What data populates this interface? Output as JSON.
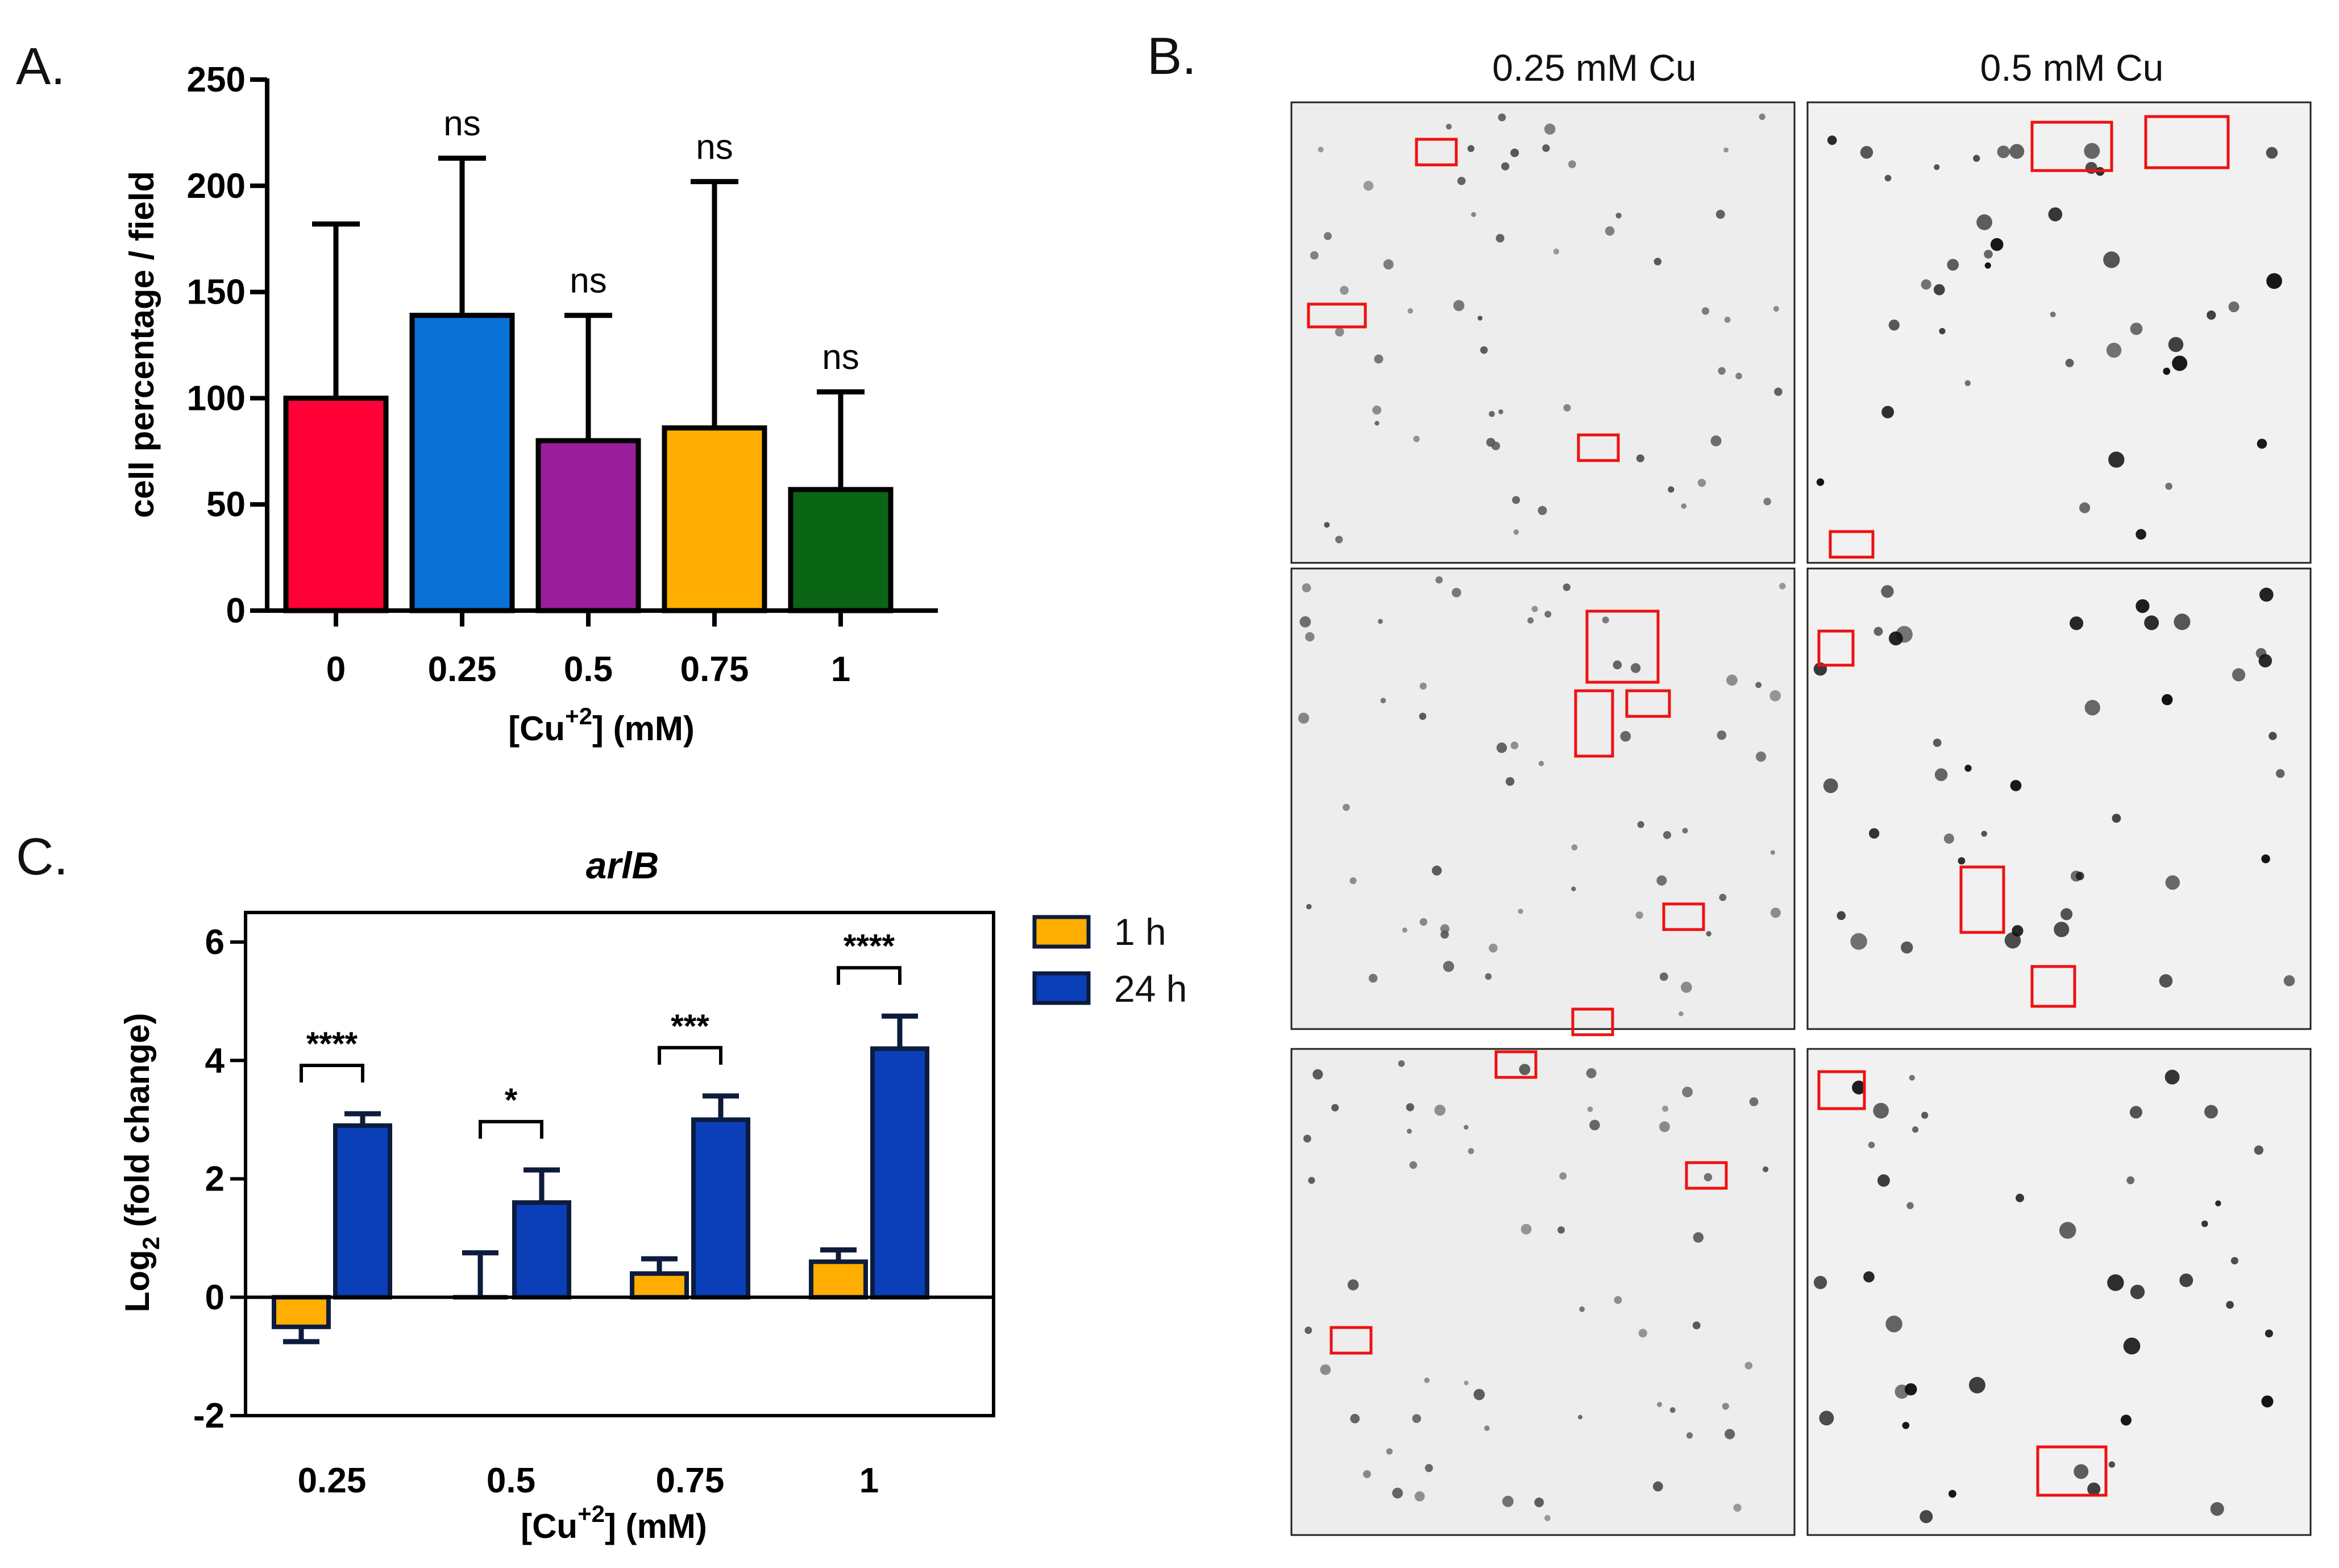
{
  "panels": {
    "a": {
      "letter": "A."
    },
    "b": {
      "letter": "B.",
      "col_labels": [
        "0.25 mM Cu",
        "0.5 mM Cu"
      ]
    },
    "c": {
      "letter": "C."
    }
  },
  "chart_data": [
    {
      "id": "A",
      "type": "bar",
      "title": "",
      "xlabel": "[Cu+2] (mM)",
      "xlabel_parts": {
        "base": "[Cu",
        "sup": "+2",
        "rest": "] (mM)"
      },
      "ylabel": "cell percentage / field",
      "categories": [
        "0",
        "0.25",
        "0.5",
        "0.75",
        "1"
      ],
      "values": [
        100,
        139,
        80,
        86,
        57
      ],
      "error_upper": [
        182,
        213,
        139,
        202,
        103
      ],
      "colors": [
        "#ff0037",
        "#0a72d6",
        "#9b1f9d",
        "#ffad00",
        "#0a6615"
      ],
      "annotations": [
        "",
        "ns",
        "ns",
        "ns",
        "ns"
      ],
      "ylim": [
        0,
        250
      ],
      "yticks": [
        0,
        50,
        100,
        150,
        200,
        250
      ]
    },
    {
      "id": "C",
      "type": "bar",
      "title": "arlB",
      "xlabel": "[Cu+2] (mM)",
      "xlabel_parts": {
        "base": "[Cu",
        "sup": "+2",
        "rest": "] (mM)"
      },
      "ylabel": "Log2 (fold change)",
      "ylabel_parts": {
        "base": "Log",
        "sub": "2",
        "rest": " (fold change)"
      },
      "categories": [
        "0.25",
        "0.5",
        "0.75",
        "1"
      ],
      "series": [
        {
          "name": "1 h",
          "color": "#ffad00",
          "values": [
            -0.5,
            0.0,
            0.4,
            0.6
          ],
          "errors": [
            0.25,
            0.75,
            0.25,
            0.2
          ]
        },
        {
          "name": "24 h",
          "color": "#0a3fb8",
          "values": [
            2.9,
            1.6,
            3.0,
            4.2
          ],
          "errors": [
            0.2,
            0.55,
            0.4,
            0.55
          ]
        }
      ],
      "significance": [
        "****",
        "*",
        "***",
        "****"
      ],
      "ylim": [
        -2,
        6.5
      ],
      "yticks": [
        -2,
        0,
        2,
        4,
        6
      ],
      "legend_position": "right"
    }
  ]
}
